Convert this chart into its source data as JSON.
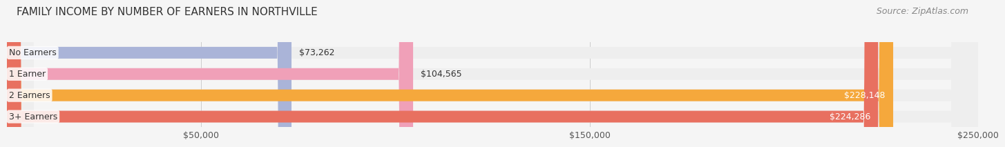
{
  "title": "FAMILY INCOME BY NUMBER OF EARNERS IN NORTHVILLE",
  "source": "Source: ZipAtlas.com",
  "categories": [
    "No Earners",
    "1 Earner",
    "2 Earners",
    "3+ Earners"
  ],
  "values": [
    73262,
    104565,
    228148,
    224286
  ],
  "bar_colors": [
    "#aab4d8",
    "#f0a0b8",
    "#f5a83c",
    "#e87060"
  ],
  "bar_bg_color": "#eeeeee",
  "label_colors": [
    "#555555",
    "#555555",
    "#ffffff",
    "#ffffff"
  ],
  "xmax": 250000,
  "xticks": [
    50000,
    150000,
    250000
  ],
  "xtick_labels": [
    "$50,000",
    "$150,000",
    "$250,000"
  ],
  "value_labels": [
    "$73,262",
    "$104,565",
    "$228,148",
    "$224,286"
  ],
  "background_color": "#f5f5f5",
  "title_fontsize": 11,
  "source_fontsize": 9,
  "bar_label_fontsize": 9,
  "tick_fontsize": 9
}
